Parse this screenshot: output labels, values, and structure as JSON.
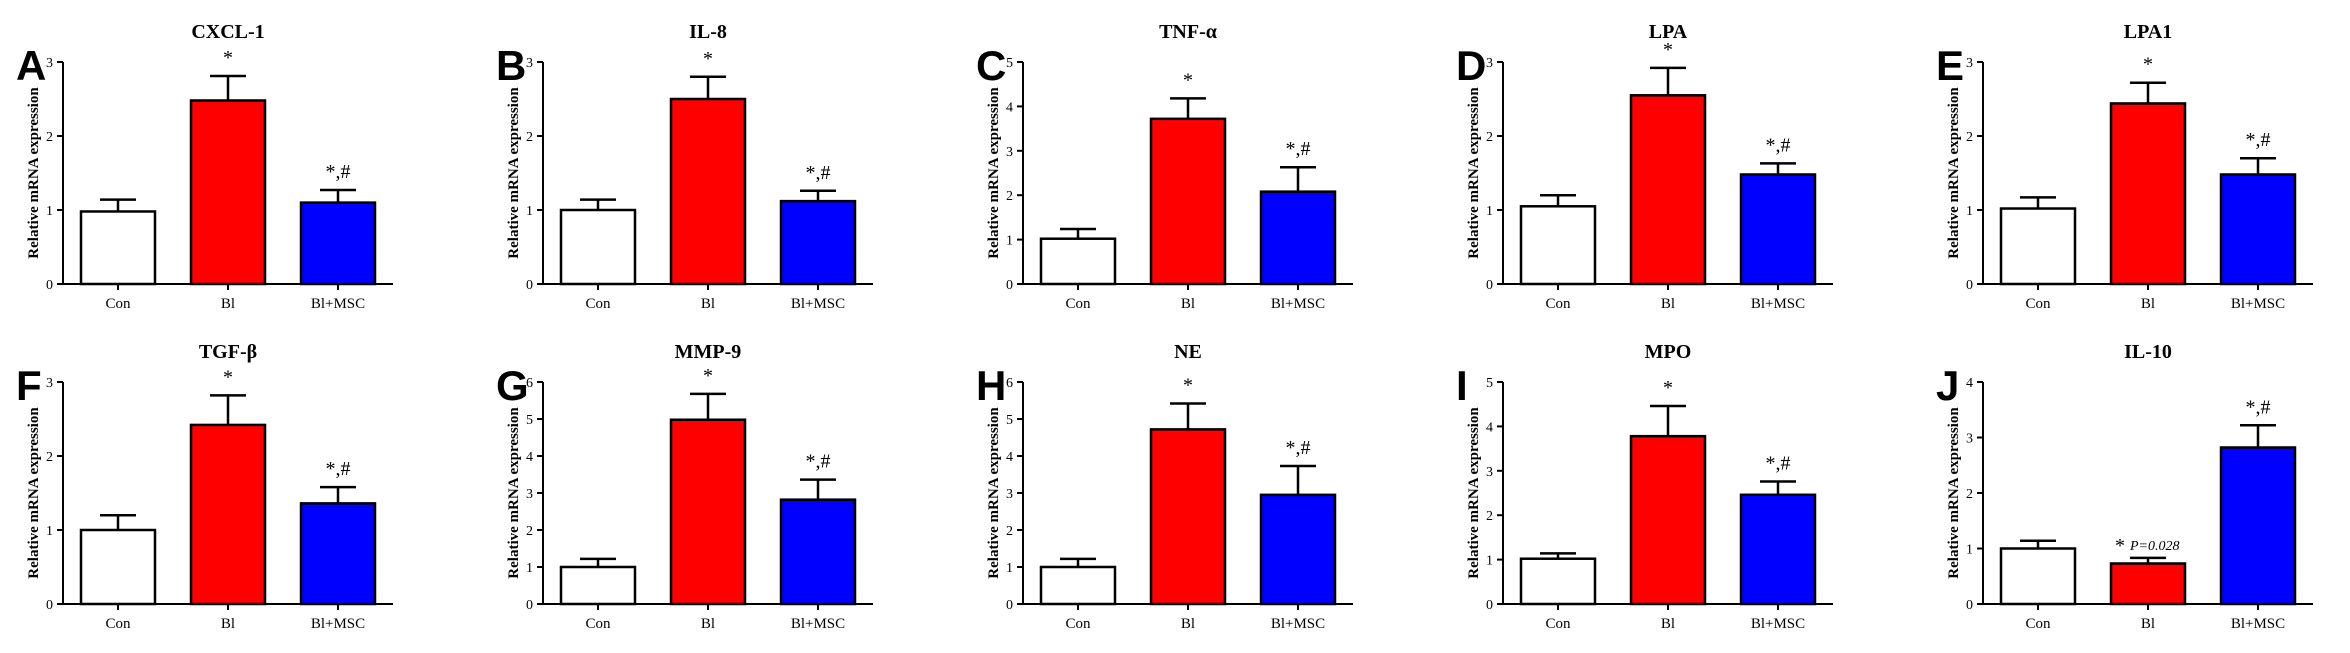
{
  "colors": {
    "con": "#ffffff",
    "bl": "#ff0000",
    "bl_msc": "#0000ff",
    "stroke": "#000000"
  },
  "chart_data": [
    {
      "type": "bar",
      "panel": "A",
      "title": "CXCL-1",
      "ylabel": "Relative mRNA expression",
      "xlabel": "",
      "categories": [
        "Con",
        "Bl",
        "Bl+MSC"
      ],
      "values": [
        0.98,
        2.48,
        1.1
      ],
      "errors": [
        0.16,
        0.33,
        0.17
      ],
      "ylim": [
        0,
        3
      ],
      "yticks": [
        "0",
        "1",
        "2",
        "3"
      ],
      "annotations": [
        "",
        "*",
        "*,#"
      ],
      "notes": [
        "",
        "",
        ""
      ]
    },
    {
      "type": "bar",
      "panel": "B",
      "title": "IL-8",
      "ylabel": "Relative mRNA expression",
      "xlabel": "",
      "categories": [
        "Con",
        "Bl",
        "Bl+MSC"
      ],
      "values": [
        1.0,
        2.5,
        1.12
      ],
      "errors": [
        0.14,
        0.3,
        0.14
      ],
      "ylim": [
        0,
        3
      ],
      "yticks": [
        "0",
        "1",
        "2",
        "3"
      ],
      "annotations": [
        "",
        "*",
        "*,#"
      ],
      "notes": [
        "",
        "",
        ""
      ]
    },
    {
      "type": "bar",
      "panel": "C",
      "title": "TNF-α",
      "ylabel": "Relative mRNA expression",
      "xlabel": "",
      "categories": [
        "Con",
        "Bl",
        "Bl+MSC"
      ],
      "values": [
        1.02,
        3.72,
        2.08
      ],
      "errors": [
        0.22,
        0.46,
        0.55
      ],
      "ylim": [
        0,
        5
      ],
      "yticks": [
        "0",
        "1",
        "2",
        "3",
        "4",
        "5"
      ],
      "annotations": [
        "",
        "*",
        "*,#"
      ],
      "notes": [
        "",
        "",
        ""
      ]
    },
    {
      "type": "bar",
      "panel": "D",
      "title": "LPA",
      "ylabel": "Relative mRNA expression",
      "xlabel": "",
      "categories": [
        "Con",
        "Bl",
        "Bl+MSC"
      ],
      "values": [
        1.05,
        2.55,
        1.48
      ],
      "errors": [
        0.15,
        0.37,
        0.15
      ],
      "ylim": [
        0,
        3
      ],
      "yticks": [
        "0",
        "1",
        "2",
        "3"
      ],
      "annotations": [
        "",
        "*",
        "*,#"
      ],
      "notes": [
        "",
        "",
        ""
      ]
    },
    {
      "type": "bar",
      "panel": "E",
      "title": "LPA1",
      "ylabel": "Relative mRNA expression",
      "xlabel": "",
      "categories": [
        "Con",
        "Bl",
        "Bl+MSC"
      ],
      "values": [
        1.02,
        2.44,
        1.48
      ],
      "errors": [
        0.15,
        0.28,
        0.22
      ],
      "ylim": [
        0,
        3
      ],
      "yticks": [
        "0",
        "1",
        "2",
        "3"
      ],
      "annotations": [
        "",
        "*",
        "*,#"
      ],
      "notes": [
        "",
        "",
        ""
      ]
    },
    {
      "type": "bar",
      "panel": "F",
      "title": "TGF-β",
      "ylabel": "Relative mRNA expression",
      "xlabel": "",
      "categories": [
        "Con",
        "Bl",
        "Bl+MSC"
      ],
      "values": [
        1.0,
        2.42,
        1.36
      ],
      "errors": [
        0.2,
        0.4,
        0.22
      ],
      "ylim": [
        0,
        3
      ],
      "yticks": [
        "0",
        "1",
        "2",
        "3"
      ],
      "annotations": [
        "",
        "*",
        "*,#"
      ],
      "notes": [
        "",
        "",
        ""
      ]
    },
    {
      "type": "bar",
      "panel": "G",
      "title": "MMP-9",
      "ylabel": "Relative mRNA expression",
      "xlabel": "",
      "categories": [
        "Con",
        "Bl",
        "Bl+MSC"
      ],
      "values": [
        1.0,
        4.98,
        2.82
      ],
      "errors": [
        0.22,
        0.7,
        0.54
      ],
      "ylim": [
        0,
        6
      ],
      "yticks": [
        "0",
        "1",
        "2",
        "3",
        "4",
        "5",
        "6"
      ],
      "annotations": [
        "",
        "*",
        "*,#"
      ],
      "notes": [
        "",
        "",
        ""
      ]
    },
    {
      "type": "bar",
      "panel": "H",
      "title": "NE",
      "ylabel": "Relative mRNA expression",
      "xlabel": "",
      "categories": [
        "Con",
        "Bl",
        "Bl+MSC"
      ],
      "values": [
        1.0,
        4.72,
        2.95
      ],
      "errors": [
        0.22,
        0.7,
        0.78
      ],
      "ylim": [
        0,
        6
      ],
      "yticks": [
        "0",
        "1",
        "2",
        "3",
        "4",
        "5",
        "6"
      ],
      "annotations": [
        "",
        "*",
        "*,#"
      ],
      "notes": [
        "",
        "",
        ""
      ]
    },
    {
      "type": "bar",
      "panel": "I",
      "title": "MPO",
      "ylabel": "Relative mRNA expression",
      "xlabel": "",
      "categories": [
        "Con",
        "Bl",
        "Bl+MSC"
      ],
      "values": [
        1.02,
        3.78,
        2.46
      ],
      "errors": [
        0.12,
        0.68,
        0.3
      ],
      "ylim": [
        0,
        5
      ],
      "yticks": [
        "0",
        "1",
        "2",
        "3",
        "4",
        "5"
      ],
      "annotations": [
        "",
        "*",
        "*,#"
      ],
      "notes": [
        "",
        "",
        ""
      ]
    },
    {
      "type": "bar",
      "panel": "J",
      "title": "IL-10",
      "ylabel": "Relative mRNA expression",
      "xlabel": "",
      "categories": [
        "Con",
        "Bl",
        "Bl+MSC"
      ],
      "values": [
        1.0,
        0.73,
        2.82
      ],
      "errors": [
        0.14,
        0.1,
        0.4
      ],
      "ylim": [
        0,
        4
      ],
      "yticks": [
        "0",
        "1",
        "2",
        "3",
        "4"
      ],
      "annotations": [
        "",
        "*",
        "*,#"
      ],
      "notes": [
        "",
        "P=0.028",
        ""
      ]
    }
  ]
}
